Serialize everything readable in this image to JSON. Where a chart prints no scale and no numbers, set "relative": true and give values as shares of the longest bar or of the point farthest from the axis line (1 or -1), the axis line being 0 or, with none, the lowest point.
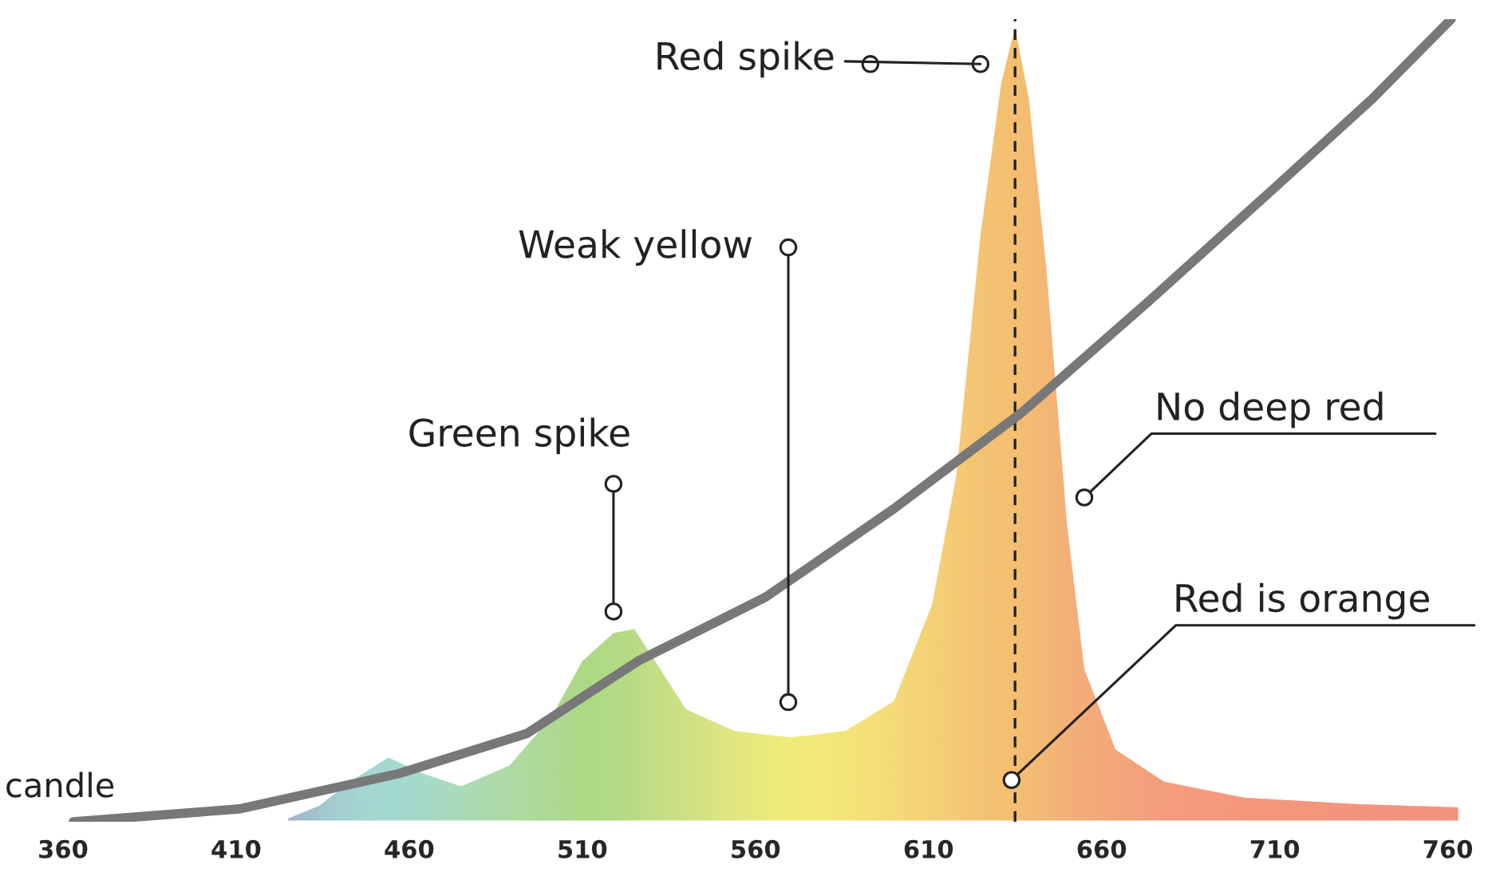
{
  "chart_data": {
    "type": "area",
    "relative": true,
    "xlim": [
      350,
      770
    ],
    "xticks": [
      360,
      410,
      460,
      510,
      560,
      610,
      660,
      710,
      760
    ],
    "tick_labels": "x",
    "grid": false,
    "series": [
      {
        "x": [
          425,
          434,
          443,
          454,
          464,
          475,
          489,
          501,
          510,
          519,
          525,
          531,
          540,
          554,
          570,
          586,
          600,
          611,
          618,
          625,
          631,
          635,
          639,
          644,
          650,
          655,
          664,
          678,
          701,
          733,
          763
        ],
        "values": [
          0.004,
          0.02,
          0.05,
          0.08,
          0.06,
          0.044,
          0.07,
          0.13,
          0.2,
          0.235,
          0.24,
          0.2,
          0.14,
          0.113,
          0.105,
          0.113,
          0.15,
          0.27,
          0.43,
          0.73,
          0.92,
          0.99,
          0.9,
          0.69,
          0.37,
          0.19,
          0.09,
          0.05,
          0.03,
          0.022,
          0.018
        ],
        "colors": [
          "#8fa8e0",
          "#8fc0e4",
          "#8fd0e8",
          "#8fd8e8",
          "#92d8dc",
          "#98d8c8",
          "#9ed8b0",
          "#9cd69a",
          "#9bd68a",
          "#a2d888",
          "#aada88",
          "#b8dd88",
          "#c5e08a",
          "#dde883",
          "#f2ee7a",
          "#f4e678",
          "#f5d878",
          "#f5cc76",
          "#f5c474",
          "#f4bc72",
          "#f4b870",
          "#f4b670",
          "#f4b272",
          "#f4ac74",
          "#f3a476",
          "#f3a07a",
          "#f4967c",
          "#f58c7e",
          "#f5847e",
          "#f5807f",
          "#f57f7f"
        ]
      },
      {
        "type": "line",
        "name": "candle",
        "color": "#787878",
        "x": [
          363,
          411,
          457,
          494,
          526,
          563,
          600,
          637,
          674,
          710,
          738,
          761
        ],
        "values": [
          0,
          0.016,
          0.06,
          0.11,
          0.2,
          0.28,
          0.39,
          0.51,
          0.65,
          0.79,
          0.9,
          1.0
        ]
      }
    ],
    "ref_lines": [
      {
        "axis": "x",
        "value": 635,
        "color": "#222222",
        "line_style": "dashed"
      }
    ],
    "annotations": [
      {
        "text": "Red spike",
        "x": 625,
        "y": 0.944
      },
      {
        "text": "Weak yellow",
        "x": 569.5,
        "y": 0.149
      },
      {
        "text": "Green spike",
        "x": 519,
        "y": 0.262
      },
      {
        "text": "No deep red",
        "x": 655,
        "y": 0.404
      },
      {
        "text": "Red is orange",
        "x": 634,
        "y": 0.052
      }
    ]
  }
}
